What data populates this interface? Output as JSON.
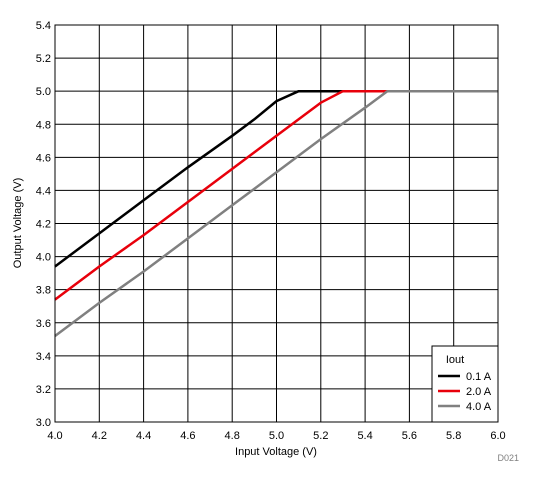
{
  "chart_data": {
    "type": "line",
    "xlabel": "Input Voltage (V)",
    "ylabel": "Output Voltage (V)",
    "xlim": [
      4.0,
      6.0
    ],
    "ylim": [
      3.0,
      5.4
    ],
    "xticks": [
      "4.0",
      "4.2",
      "4.4",
      "4.6",
      "4.8",
      "5.0",
      "5.2",
      "5.4",
      "5.6",
      "5.8",
      "6.0"
    ],
    "yticks": [
      "3.0",
      "3.2",
      "3.4",
      "3.6",
      "3.8",
      "4.0",
      "4.2",
      "4.4",
      "4.6",
      "4.8",
      "5.0",
      "5.2",
      "5.4"
    ],
    "grid": true,
    "legend": {
      "title": "Iout",
      "placement": "bottom-right"
    },
    "figure_id": "D021",
    "series": [
      {
        "name": "0.1 A",
        "color": "#000000",
        "x": [
          4.0,
          4.2,
          4.4,
          4.6,
          4.8,
          4.9,
          5.0,
          5.1,
          5.3,
          6.0
        ],
        "y": [
          3.94,
          4.14,
          4.34,
          4.54,
          4.73,
          4.83,
          4.94,
          5.0,
          5.0,
          5.0
        ]
      },
      {
        "name": "2.0 A",
        "color": "#e8000b",
        "x": [
          4.0,
          4.2,
          4.4,
          4.6,
          4.8,
          5.0,
          5.2,
          5.3,
          5.5,
          6.0
        ],
        "y": [
          3.74,
          3.94,
          4.13,
          4.33,
          4.53,
          4.73,
          4.93,
          5.0,
          5.0,
          5.0
        ]
      },
      {
        "name": "4.0 A",
        "color": "#808080",
        "x": [
          4.0,
          4.2,
          4.4,
          4.6,
          4.8,
          5.0,
          5.2,
          5.4,
          5.5,
          6.0
        ],
        "y": [
          3.52,
          3.72,
          3.91,
          4.11,
          4.31,
          4.51,
          4.71,
          4.9,
          5.0,
          5.0
        ]
      }
    ]
  }
}
